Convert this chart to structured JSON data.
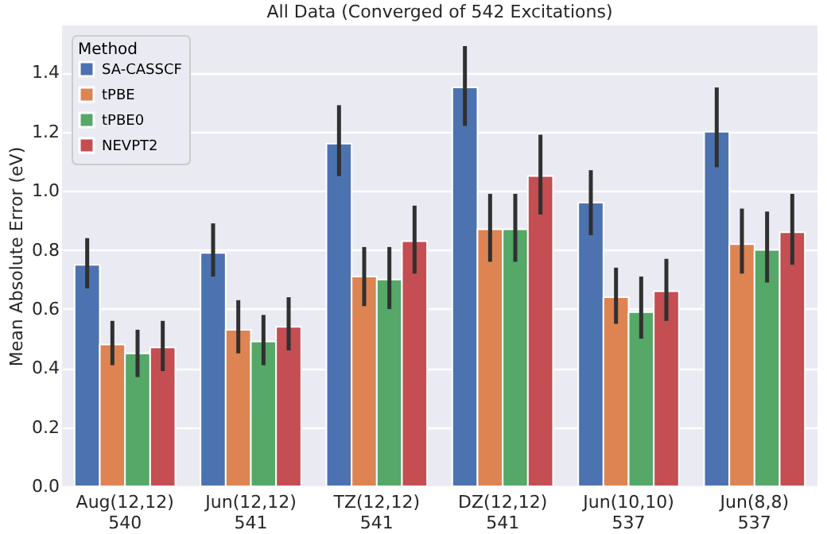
{
  "chart_data": {
    "type": "bar",
    "title": "All Data (Converged of 542 Excitations)",
    "ylabel": "Mean Absolute Error (eV)",
    "legend_title": "Method",
    "categories": [
      "Aug(12,12)\n540",
      "Jun(12,12)\n541",
      "TZ(12,12)\n541",
      "DZ(12,12)\n541",
      "Jun(10,10)\n537",
      "Jun(8,8)\n537"
    ],
    "series": [
      {
        "name": "SA-CASSCF",
        "color": "#4c72b0",
        "values": [
          0.75,
          0.79,
          1.16,
          1.35,
          0.96,
          1.2
        ],
        "errors": [
          [
            0.67,
            0.84
          ],
          [
            0.71,
            0.89
          ],
          [
            1.05,
            1.29
          ],
          [
            1.22,
            1.49
          ],
          [
            0.85,
            1.07
          ],
          [
            1.08,
            1.35
          ]
        ]
      },
      {
        "name": "tPBE",
        "color": "#dd8452",
        "values": [
          0.48,
          0.53,
          0.71,
          0.87,
          0.64,
          0.82
        ],
        "errors": [
          [
            0.41,
            0.56
          ],
          [
            0.45,
            0.63
          ],
          [
            0.61,
            0.81
          ],
          [
            0.76,
            0.99
          ],
          [
            0.55,
            0.74
          ],
          [
            0.72,
            0.94
          ]
        ]
      },
      {
        "name": "tPBE0",
        "color": "#55a868",
        "values": [
          0.45,
          0.49,
          0.7,
          0.87,
          0.59,
          0.8
        ],
        "errors": [
          [
            0.37,
            0.53
          ],
          [
            0.41,
            0.58
          ],
          [
            0.6,
            0.81
          ],
          [
            0.76,
            0.99
          ],
          [
            0.5,
            0.71
          ],
          [
            0.69,
            0.93
          ]
        ]
      },
      {
        "name": "NEVPT2",
        "color": "#c44e52",
        "values": [
          0.47,
          0.54,
          0.83,
          1.05,
          0.66,
          0.86
        ],
        "errors": [
          [
            0.39,
            0.56
          ],
          [
            0.46,
            0.64
          ],
          [
            0.72,
            0.95
          ],
          [
            0.92,
            1.19
          ],
          [
            0.56,
            0.77
          ],
          [
            0.75,
            0.99
          ]
        ]
      }
    ],
    "ylim": [
      0,
      1.56
    ],
    "yticks": [
      {
        "value": 0,
        "label": "0.0"
      },
      {
        "value": 0.2,
        "label": "0.2"
      },
      {
        "value": 0.4,
        "label": "0.4"
      },
      {
        "value": 0.6,
        "label": "0.6"
      },
      {
        "value": 0.8,
        "label": "0.8"
      },
      {
        "value": 1.0,
        "label": "1.0"
      },
      {
        "value": 1.2,
        "label": "1.2"
      },
      {
        "value": 1.4,
        "label": "1.4"
      }
    ],
    "grid": "y",
    "legend": "top left"
  }
}
